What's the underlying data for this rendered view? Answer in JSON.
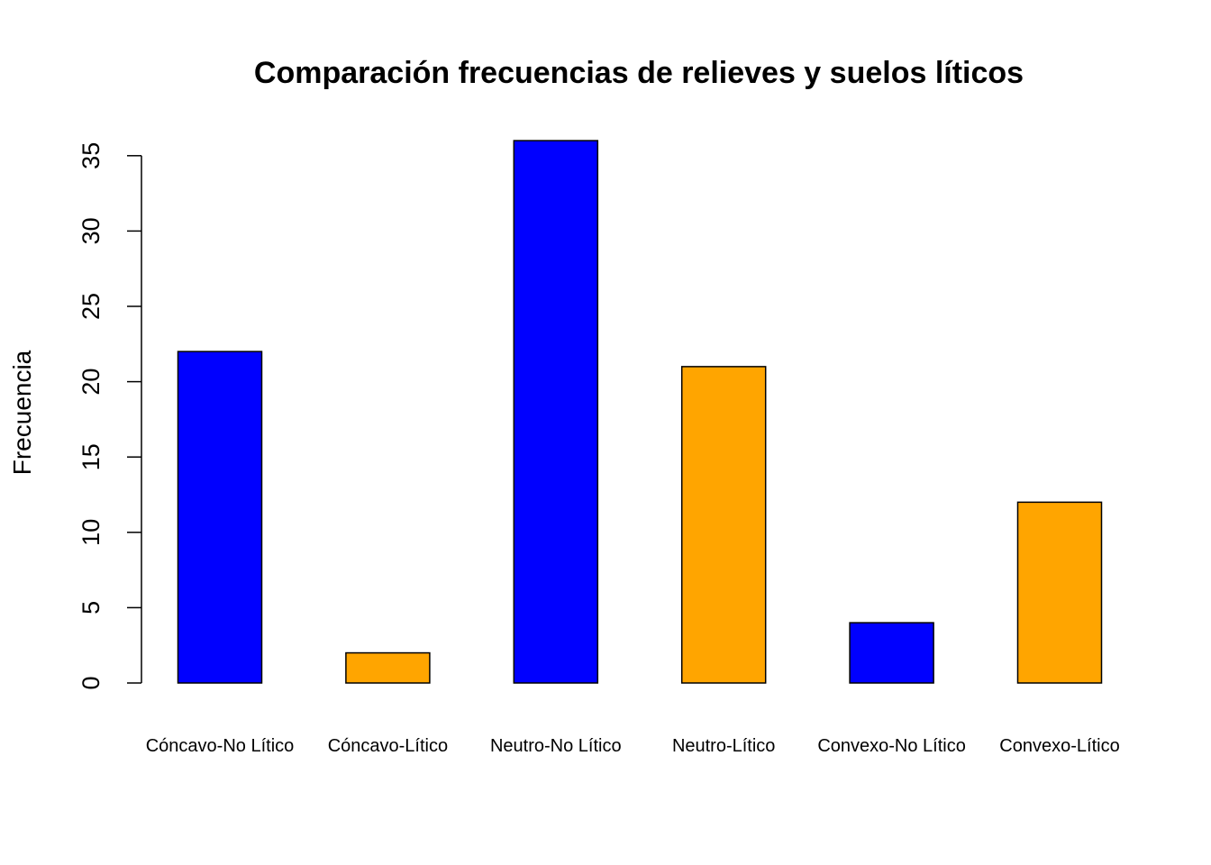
{
  "chart_data": {
    "type": "bar",
    "title": "Comparación frecuencias de relieves y suelos líticos",
    "xlabel": "",
    "ylabel": "Frecuencia",
    "categories": [
      "Cóncavo-No Lítico",
      "Cóncavo-Lítico",
      "Neutro-No Lítico",
      "Neutro-Lítico",
      "Convexo-No Lítico",
      "Convexo-Lítico"
    ],
    "values": [
      22,
      2,
      36,
      21,
      4,
      12
    ],
    "colors": [
      "#0000FF",
      "#FFA500",
      "#0000FF",
      "#FFA500",
      "#0000FF",
      "#FFA500"
    ],
    "yticks": [
      0,
      5,
      10,
      15,
      20,
      25,
      30,
      35
    ],
    "ylim": [
      0,
      36
    ],
    "grid": false,
    "legend": "none"
  }
}
